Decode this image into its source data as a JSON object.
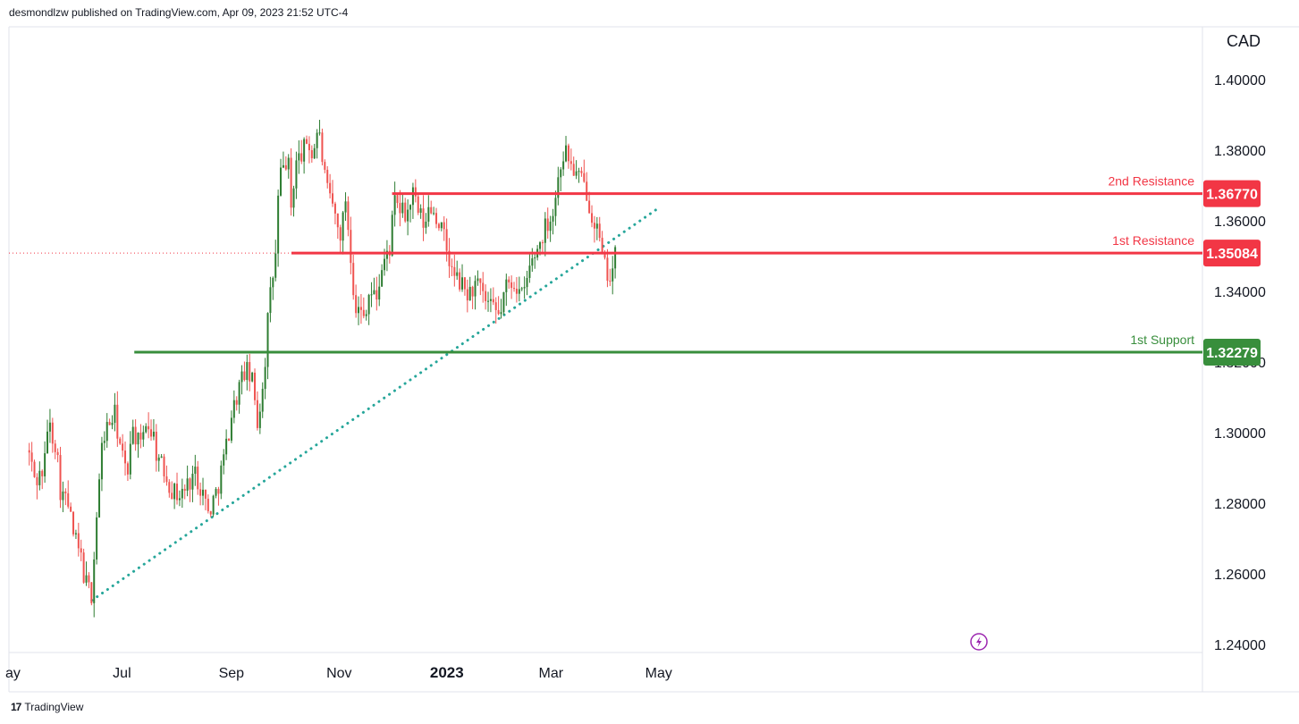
{
  "header": {
    "publisher_text": "desmondlzw published on TradingView.com, Apr 09, 2023 21:52 UTC-4"
  },
  "footer": {
    "logo_glyph": "17",
    "brand": "TradingView"
  },
  "colors": {
    "up": "#26a69a",
    "up_body": "#2e7d32",
    "down": "#ef5350",
    "resistance": "#f23645",
    "support": "#388e3c",
    "trend": "#26a69a",
    "grid": "#e0e3eb"
  },
  "chart_data": {
    "type": "candlestick",
    "symbol_currency": "CAD",
    "y_axis": {
      "ticks": [
        "1.40000",
        "1.38000",
        "1.36000",
        "1.34000",
        "1.32000",
        "1.30000",
        "1.28000",
        "1.26000",
        "1.24000"
      ],
      "range": [
        1.236,
        1.413
      ]
    },
    "x_axis": {
      "ticks": [
        "ay",
        "Jul",
        "Sep",
        "Nov",
        "2023",
        "Mar",
        "May"
      ],
      "bold": [
        "2023"
      ]
    },
    "levels": [
      {
        "label": "2nd Resistance",
        "value": "1.36770",
        "price": 1.3677,
        "kind": "resistance",
        "start": "2022-12-01"
      },
      {
        "label": "1st Resistance",
        "value": "1.35084",
        "price": 1.35084,
        "kind": "resistance",
        "start": "2022-10-05"
      },
      {
        "label": "1st Support",
        "value": "1.32279",
        "price": 1.32279,
        "kind": "support",
        "start": "2022-07-08"
      }
    ],
    "trendline": {
      "style": "dotted",
      "points": [
        {
          "date": "2022-06-14",
          "price": 1.2525
        },
        {
          "date": "2023-04-30",
          "price": 1.3633
        }
      ]
    },
    "current_price": 1.35084,
    "series_ohlc_path": [
      [
        "2022-05-09",
        1.295
      ],
      [
        "2022-05-13",
        1.286
      ],
      [
        "2022-05-18",
        1.29
      ],
      [
        "2022-05-20",
        1.303
      ],
      [
        "2022-05-25",
        1.296
      ],
      [
        "2022-05-27",
        1.284
      ],
      [
        "2022-06-01",
        1.279
      ],
      [
        "2022-06-03",
        1.272
      ],
      [
        "2022-06-08",
        1.264
      ],
      [
        "2022-06-10",
        1.258
      ],
      [
        "2022-06-14",
        1.254
      ],
      [
        "2022-06-16",
        1.272
      ],
      [
        "2022-06-20",
        1.298
      ],
      [
        "2022-06-22",
        1.301
      ],
      [
        "2022-06-27",
        1.305
      ],
      [
        "2022-06-30",
        1.296
      ],
      [
        "2022-07-04",
        1.287
      ],
      [
        "2022-07-06",
        1.301
      ],
      [
        "2022-07-08",
        1.3
      ],
      [
        "2022-07-12",
        1.295
      ],
      [
        "2022-07-14",
        1.304
      ],
      [
        "2022-07-19",
        1.299
      ],
      [
        "2022-07-21",
        1.293
      ],
      [
        "2022-07-26",
        1.288
      ],
      [
        "2022-07-29",
        1.284
      ],
      [
        "2022-08-03",
        1.282
      ],
      [
        "2022-08-08",
        1.286
      ],
      [
        "2022-08-11",
        1.289
      ],
      [
        "2022-08-16",
        1.283
      ],
      [
        "2022-08-19",
        1.277
      ],
      [
        "2022-08-24",
        1.284
      ],
      [
        "2022-08-29",
        1.296
      ],
      [
        "2022-09-01",
        1.305
      ],
      [
        "2022-09-06",
        1.314
      ],
      [
        "2022-09-09",
        1.318
      ],
      [
        "2022-09-13",
        1.314
      ],
      [
        "2022-09-16",
        1.302
      ],
      [
        "2022-09-20",
        1.32
      ],
      [
        "2022-09-22",
        1.335
      ],
      [
        "2022-09-26",
        1.35
      ],
      [
        "2022-09-28",
        1.372
      ],
      [
        "2022-10-03",
        1.378
      ],
      [
        "2022-10-05",
        1.362
      ],
      [
        "2022-10-07",
        1.376
      ],
      [
        "2022-10-12",
        1.38
      ],
      [
        "2022-10-14",
        1.383
      ],
      [
        "2022-10-17",
        1.378
      ],
      [
        "2022-10-20",
        1.387
      ],
      [
        "2022-10-24",
        1.372
      ],
      [
        "2022-10-26",
        1.366
      ],
      [
        "2022-10-28",
        1.365
      ],
      [
        "2022-11-01",
        1.356
      ],
      [
        "2022-11-03",
        1.358
      ],
      [
        "2022-11-04",
        1.37
      ],
      [
        "2022-11-08",
        1.348
      ],
      [
        "2022-11-10",
        1.336
      ],
      [
        "2022-11-15",
        1.333
      ],
      [
        "2022-11-18",
        1.34
      ],
      [
        "2022-11-22",
        1.338
      ],
      [
        "2022-11-25",
        1.346
      ],
      [
        "2022-11-30",
        1.353
      ],
      [
        "2022-12-02",
        1.365
      ],
      [
        "2022-12-06",
        1.363
      ],
      [
        "2022-12-09",
        1.361
      ],
      [
        "2022-12-13",
        1.368
      ],
      [
        "2022-12-15",
        1.363
      ],
      [
        "2022-12-20",
        1.358
      ],
      [
        "2022-12-22",
        1.365
      ],
      [
        "2022-12-28",
        1.359
      ],
      [
        "2022-12-30",
        1.356
      ],
      [
        "2023-01-04",
        1.345
      ],
      [
        "2023-01-09",
        1.342
      ],
      [
        "2023-01-13",
        1.339
      ],
      [
        "2023-01-18",
        1.342
      ],
      [
        "2023-01-23",
        1.337
      ],
      [
        "2023-01-26",
        1.335
      ],
      [
        "2023-01-31",
        1.333
      ],
      [
        "2023-02-03",
        1.341
      ],
      [
        "2023-02-08",
        1.343
      ],
      [
        "2023-02-13",
        1.338
      ],
      [
        "2023-02-17",
        1.347
      ],
      [
        "2023-02-22",
        1.353
      ],
      [
        "2023-02-27",
        1.36
      ],
      [
        "2023-03-02",
        1.362
      ],
      [
        "2023-03-07",
        1.378
      ],
      [
        "2023-03-09",
        1.38
      ],
      [
        "2023-03-14",
        1.374
      ],
      [
        "2023-03-17",
        1.372
      ],
      [
        "2023-03-21",
        1.369
      ],
      [
        "2023-03-23",
        1.364
      ],
      [
        "2023-03-27",
        1.358
      ],
      [
        "2023-03-29",
        1.352
      ],
      [
        "2023-03-31",
        1.347
      ],
      [
        "2023-04-04",
        1.344
      ],
      [
        "2023-04-06",
        1.349
      ],
      [
        "2023-04-07",
        1.351
      ]
    ]
  }
}
